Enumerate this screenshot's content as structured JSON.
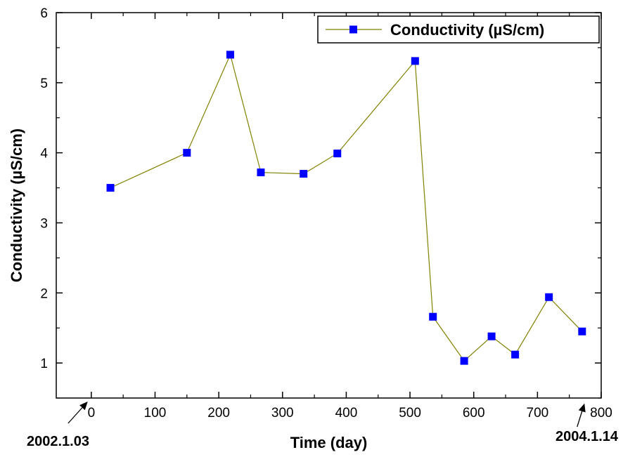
{
  "chart_data": {
    "type": "line",
    "xlabel": "Time (day)",
    "ylabel": "Conductivity (µS/cm)",
    "xlim": [
      -55,
      800
    ],
    "ylim": [
      0.5,
      6
    ],
    "x_ticks": [
      0,
      100,
      200,
      300,
      400,
      500,
      600,
      700,
      800
    ],
    "y_ticks": [
      1,
      2,
      3,
      4,
      5,
      6
    ],
    "grid": false,
    "legend_position": "top-right",
    "series": [
      {
        "name": "Conductivity (µS/cm)",
        "color": "#0000ff",
        "line_color": "#808000",
        "marker": "square",
        "x": [
          30,
          150,
          218,
          266,
          333,
          386,
          508,
          536,
          585,
          628,
          665,
          718,
          770
        ],
        "y": [
          3.5,
          4.0,
          5.4,
          3.72,
          3.7,
          3.99,
          5.31,
          1.66,
          1.03,
          1.38,
          1.12,
          1.94,
          1.45
        ]
      }
    ],
    "annotations": [
      {
        "text": "2002.1.03",
        "x": 0
      },
      {
        "text": "2004.1.14",
        "x": 770
      }
    ]
  }
}
